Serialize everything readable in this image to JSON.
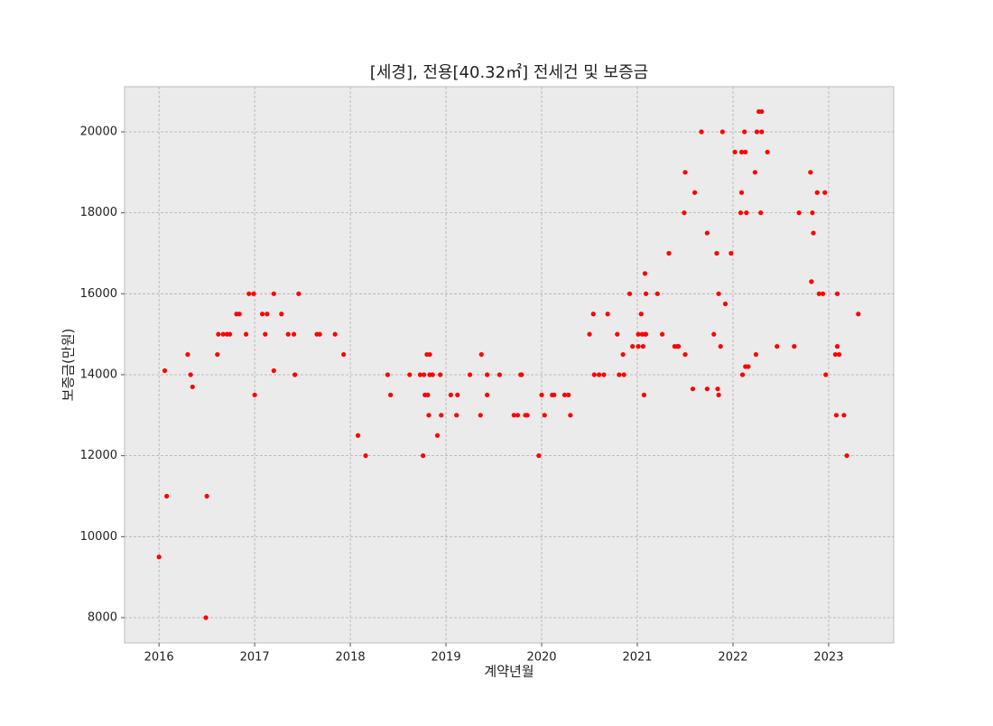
{
  "chart_data": {
    "type": "scatter",
    "title": "[세경], 전용[40.32㎡] 전세건 및 보증금",
    "x_label": "계약년월",
    "y_label": "보증금(만원)",
    "color": "#ff0000",
    "grid": true,
    "xlim": [
      2015.64,
      2023.68
    ],
    "ylim": [
      7375,
      21115
    ],
    "xticks": [
      2016,
      2017,
      2018,
      2019,
      2020,
      2021,
      2022,
      2023
    ],
    "yticks": [
      8000,
      10000,
      12000,
      14000,
      16000,
      18000,
      20000
    ],
    "x": [
      2016.0,
      2016.06,
      2016.08,
      2016.3,
      2016.33,
      2016.35,
      2016.49,
      2016.5,
      2016.61,
      2016.62,
      2016.67,
      2016.71,
      2016.74,
      2016.81,
      2016.84,
      2016.91,
      2016.94,
      2016.99,
      2017.0,
      2017.08,
      2017.11,
      2017.13,
      2017.2,
      2017.2,
      2017.28,
      2017.35,
      2017.41,
      2017.42,
      2017.46,
      2017.65,
      2017.68,
      2017.84,
      2017.93,
      2018.08,
      2018.16,
      2018.39,
      2018.42,
      2018.62,
      2018.73,
      2018.76,
      2018.77,
      2018.78,
      2018.8,
      2018.81,
      2018.83,
      2018.82,
      2018.83,
      2018.86,
      2018.91,
      2018.94,
      2018.95,
      2019.05,
      2019.11,
      2019.12,
      2019.25,
      2019.36,
      2019.37,
      2019.43,
      2019.43,
      2019.56,
      2019.71,
      2019.75,
      2019.78,
      2019.79,
      2019.83,
      2019.85,
      2019.97,
      2020.0,
      2020.03,
      2020.11,
      2020.13,
      2020.24,
      2020.28,
      2020.3,
      2020.5,
      2020.54,
      2020.55,
      2020.6,
      2020.65,
      2020.69,
      2020.79,
      2020.81,
      2020.85,
      2020.86,
      2020.92,
      2020.95,
      2021.01,
      2021.01,
      2021.04,
      2021.05,
      2021.06,
      2021.07,
      2021.08,
      2021.08,
      2021.09,
      2021.09,
      2021.21,
      2021.26,
      2021.33,
      2021.39,
      2021.42,
      2021.43,
      2021.49,
      2021.5,
      2021.5,
      2021.58,
      2021.6,
      2021.67,
      2021.73,
      2021.73,
      2021.8,
      2021.83,
      2021.84,
      2021.85,
      2021.85,
      2021.87,
      2021.89,
      2021.92,
      2021.98,
      2022.02,
      2022.08,
      2022.09,
      2022.09,
      2022.1,
      2022.12,
      2022.13,
      2022.13,
      2022.14,
      2022.16,
      2022.23,
      2022.24,
      2022.25,
      2022.27,
      2022.29,
      2022.3,
      2022.3,
      2022.36,
      2022.46,
      2022.64,
      2022.69,
      2022.81,
      2022.82,
      2022.83,
      2022.84,
      2022.88,
      2022.9,
      2022.94,
      2022.96,
      2022.97,
      2023.07,
      2023.08,
      2023.09,
      2023.09,
      2023.11,
      2023.16,
      2023.19,
      2023.31
    ],
    "values": [
      9500,
      14100,
      11000,
      14500,
      14000,
      13700,
      8000,
      11000,
      14500,
      15000,
      15000,
      15000,
      15000,
      15500,
      15500,
      15000,
      16000,
      16000,
      13500,
      15500,
      15000,
      15500,
      16000,
      14100,
      15500,
      15000,
      15000,
      14000,
      16000,
      15000,
      15000,
      15000,
      14500,
      12500,
      12000,
      14000,
      13500,
      14000,
      14000,
      12000,
      14000,
      13500,
      14500,
      13500,
      14500,
      13000,
      14000,
      14000,
      12500,
      14000,
      13000,
      13500,
      13000,
      13500,
      14000,
      13000,
      14500,
      13500,
      14000,
      14000,
      13000,
      13000,
      14000,
      14000,
      13000,
      13000,
      12000,
      13500,
      13000,
      13500,
      13500,
      13500,
      13500,
      13000,
      15000,
      15500,
      14000,
      14000,
      14000,
      15500,
      15000,
      14000,
      14500,
      14000,
      16000,
      14700,
      15000,
      14700,
      15500,
      15000,
      14700,
      13500,
      15000,
      16500,
      16000,
      15000,
      16000,
      15000,
      17000,
      14700,
      14700,
      14700,
      18000,
      19000,
      14500,
      13650,
      18500,
      20000,
      17500,
      13650,
      15000,
      17000,
      13650,
      16000,
      13500,
      14700,
      20000,
      15750,
      17000,
      19500,
      18000,
      18500,
      19500,
      14000,
      20000,
      19500,
      14200,
      18000,
      14200,
      19000,
      14500,
      20000,
      20500,
      18000,
      20500,
      20000,
      19500,
      14700,
      14700,
      18000,
      19000,
      16300,
      18000,
      17500,
      18500,
      16000,
      16000,
      18500,
      14000,
      14500,
      13000,
      16000,
      14700,
      14500,
      13000,
      12000,
      15500
    ]
  }
}
